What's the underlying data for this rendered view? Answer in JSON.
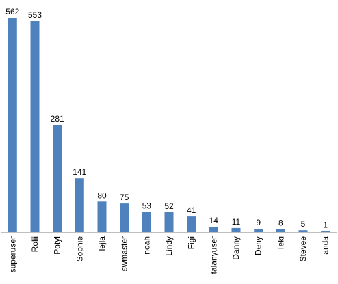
{
  "chart_data": {
    "type": "bar",
    "categories": [
      "superuser",
      "Rolii",
      "Potyi",
      "Sophie",
      "lejla",
      "swmaster",
      "noah",
      "Lindy",
      "Figi",
      "talanyuser",
      "Danny",
      "Deny",
      "Teki",
      "Stevee",
      "anda"
    ],
    "values": [
      562,
      553,
      281,
      141,
      80,
      75,
      53,
      52,
      41,
      14,
      11,
      9,
      8,
      5,
      1
    ],
    "title": "",
    "xlabel": "",
    "ylabel": "",
    "ylim": [
      0,
      562
    ],
    "grid": false,
    "legend": "none",
    "data_labels": true,
    "bar_color": "#4f81bd",
    "axis_color": "#bfbfbf"
  }
}
